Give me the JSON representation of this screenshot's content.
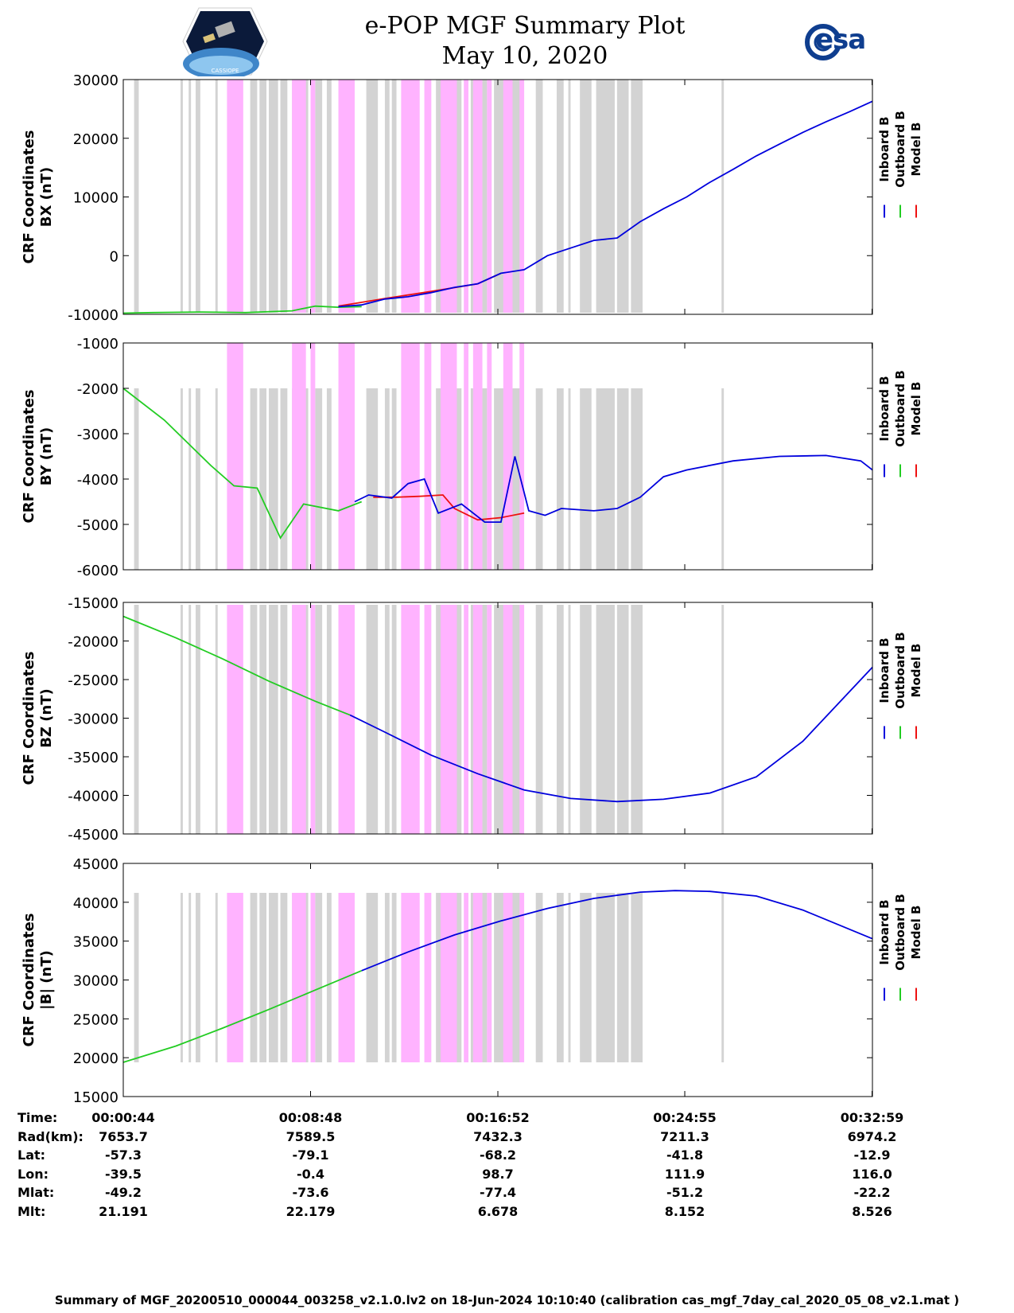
{
  "header": {
    "title_line1": "e-POP MGF Summary Plot",
    "title_line2": "May 10, 2020",
    "logo_left": "cassiope-satellite-logo",
    "logo_left_caption": "CASSIOPE",
    "logo_right": "esa-logo",
    "logo_right_text": "esa"
  },
  "colors": {
    "inboard": "#0000dd",
    "outboard": "#22cc22",
    "model": "#ee1111",
    "gray_band": "#d3d3d3",
    "magenta_band": "#ffb3ff"
  },
  "legend": {
    "inboard": "Inboard B",
    "outboard": "Outboard B",
    "model": "Model B"
  },
  "chart_data": [
    {
      "type": "line",
      "ylabel_line1": "CRF Coordinates",
      "ylabel_line2": "BX (nT)",
      "ylim": [
        -10000,
        30000
      ],
      "yticks": [
        "30000",
        "20000",
        "10000",
        "0",
        "-10000"
      ],
      "xlim_min": [
        0.73,
        33.0
      ],
      "series": [
        {
          "name": "Outboard B",
          "x": [
            0.73,
            2,
            4,
            6,
            8,
            9,
            10,
            11
          ],
          "y": [
            -9800,
            -9700,
            -9600,
            -9700,
            -9400,
            -8600,
            -8800,
            -8700
          ]
        },
        {
          "name": "Model B",
          "x": [
            10,
            12,
            14,
            16,
            17
          ],
          "y": [
            -8600,
            -7300,
            -6100,
            -4800,
            -3000
          ]
        },
        {
          "name": "Inboard B",
          "x": [
            10,
            11,
            12,
            13,
            14,
            15,
            16,
            17,
            18,
            19,
            20,
            21,
            22,
            23,
            24,
            25,
            26,
            27,
            28,
            29,
            30,
            31,
            32,
            33
          ],
          "y": [
            -8700,
            -8400,
            -7400,
            -7000,
            -6300,
            -5400,
            -4800,
            -3000,
            -2400,
            0,
            1300,
            2600,
            3000,
            5800,
            8000,
            10000,
            12500,
            14700,
            17000,
            19000,
            21000,
            22800,
            24500,
            26300
          ]
        }
      ]
    },
    {
      "type": "line",
      "ylabel_line1": "CRF Coordinates",
      "ylabel_line2": "BY (nT)",
      "ylim": [
        -6000,
        -1000
      ],
      "yticks": [
        "-1000",
        "-2000",
        "-3000",
        "-4000",
        "-5000",
        "-6000"
      ],
      "series": [
        {
          "name": "Outboard B",
          "x": [
            0.73,
            2.5,
            4.5,
            5.5,
            6.5,
            7.5,
            8.5,
            10,
            11
          ],
          "y": [
            -2000,
            -2700,
            -3700,
            -4150,
            -4200,
            -5300,
            -4550,
            -4700,
            -4500
          ]
        },
        {
          "name": "Model B",
          "x": [
            11.5,
            12.5,
            13.5,
            14.5,
            15,
            16,
            17,
            18
          ],
          "y": [
            -4400,
            -4400,
            -4380,
            -4350,
            -4650,
            -4900,
            -4850,
            -4750
          ]
        },
        {
          "name": "Inboard B",
          "x": [
            10.7,
            11.3,
            12.3,
            13,
            13.7,
            14.3,
            15.3,
            16.3,
            17,
            17.6,
            18.2,
            18.9,
            19.6,
            21,
            22,
            23,
            24,
            25,
            27,
            29,
            31,
            32.5,
            33
          ],
          "y": [
            -4500,
            -4350,
            -4420,
            -4100,
            -4000,
            -4750,
            -4550,
            -4950,
            -4950,
            -3500,
            -4700,
            -4800,
            -4650,
            -4700,
            -4650,
            -4400,
            -3950,
            -3800,
            -3600,
            -3500,
            -3480,
            -3600,
            -3800
          ]
        }
      ]
    },
    {
      "type": "line",
      "ylabel_line1": "CRF Coordinates",
      "ylabel_line2": "BZ (nT)",
      "ylim": [
        -45000,
        -15000
      ],
      "yticks": [
        "-15000",
        "-20000",
        "-25000",
        "-30000",
        "-35000",
        "-40000",
        "-45000"
      ],
      "series": [
        {
          "name": "Outboard B",
          "x": [
            0.73,
            3,
            5,
            7,
            9,
            10.5
          ],
          "y": [
            -16800,
            -19600,
            -22300,
            -25200,
            -27800,
            -29600
          ]
        },
        {
          "name": "Inboard B",
          "x": [
            10.5,
            12,
            14,
            16,
            18,
            20,
            22,
            24,
            26,
            28,
            30,
            33
          ],
          "y": [
            -29600,
            -31800,
            -34800,
            -37200,
            -39300,
            -40400,
            -40800,
            -40500,
            -39700,
            -37600,
            -33000,
            -23400
          ]
        }
      ]
    },
    {
      "type": "line",
      "ylabel_line1": "CRF Coordinates",
      "ylabel_line2": "|B| (nT)",
      "ylim": [
        15000,
        45000
      ],
      "yticks": [
        "45000",
        "40000",
        "35000",
        "30000",
        "25000",
        "20000",
        "15000"
      ],
      "series": [
        {
          "name": "Outboard B",
          "x": [
            0.73,
            3,
            5,
            7,
            9,
            11
          ],
          "y": [
            19400,
            21500,
            23800,
            26200,
            28700,
            31200
          ]
        },
        {
          "name": "Inboard B",
          "x": [
            11,
            13,
            15,
            17,
            19,
            21,
            23,
            24.5,
            26,
            28,
            30,
            33
          ],
          "y": [
            31200,
            33600,
            35800,
            37600,
            39200,
            40500,
            41300,
            41500,
            41400,
            40800,
            39000,
            35300
          ]
        }
      ]
    }
  ],
  "bands": {
    "gray": [
      [
        1.2,
        1.4
      ],
      [
        3.2,
        3.3
      ],
      [
        3.55,
        3.65
      ],
      [
        3.85,
        4.05
      ],
      [
        4.7,
        4.8
      ],
      [
        6.2,
        6.5
      ],
      [
        6.6,
        6.9
      ],
      [
        7.0,
        7.4
      ],
      [
        7.5,
        7.8
      ],
      [
        8.0,
        8.2
      ],
      [
        8.4,
        8.7
      ],
      [
        9.0,
        9.3
      ],
      [
        9.5,
        9.7
      ],
      [
        10.0,
        10.4
      ],
      [
        11.2,
        11.7
      ],
      [
        12.0,
        12.2
      ],
      [
        12.3,
        12.5
      ],
      [
        14.2,
        14.5
      ],
      [
        15.0,
        15.3
      ],
      [
        15.7,
        15.9
      ],
      [
        16.2,
        16.4
      ],
      [
        16.7,
        17.2
      ],
      [
        17.5,
        17.9
      ],
      [
        18.5,
        18.8
      ],
      [
        19.4,
        19.7
      ],
      [
        19.9,
        20.0
      ],
      [
        20.4,
        20.9
      ],
      [
        21.1,
        21.9
      ],
      [
        22.0,
        22.5
      ],
      [
        22.6,
        23.1
      ],
      [
        26.5,
        26.6
      ]
    ],
    "magenta": [
      [
        5.2,
        5.9
      ],
      [
        8.0,
        8.6
      ],
      [
        8.8,
        9.0
      ],
      [
        10.0,
        10.7
      ],
      [
        12.7,
        13.5
      ],
      [
        13.7,
        14.0
      ],
      [
        14.4,
        15.1
      ],
      [
        15.4,
        15.6
      ],
      [
        15.8,
        16.2
      ],
      [
        16.4,
        16.6
      ],
      [
        17.1,
        17.5
      ],
      [
        17.8,
        18.0
      ]
    ]
  },
  "xaxis": {
    "ticks_min": [
      0.733,
      8.8,
      16.867,
      24.917,
      32.983
    ],
    "tick_labels": [
      "00:00:44",
      "00:08:48",
      "00:16:52",
      "00:24:55",
      "00:32:59"
    ]
  },
  "table": {
    "rows": [
      {
        "label": "Time:",
        "values": [
          "00:00:44",
          "00:08:48",
          "00:16:52",
          "00:24:55",
          "00:32:59"
        ]
      },
      {
        "label": "Rad(km):",
        "values": [
          "7653.7",
          "7589.5",
          "7432.3",
          "7211.3",
          "6974.2"
        ]
      },
      {
        "label": "Lat:",
        "values": [
          "-57.3",
          "-79.1",
          "-68.2",
          "-41.8",
          "-12.9"
        ]
      },
      {
        "label": "Lon:",
        "values": [
          "-39.5",
          "-0.4",
          "98.7",
          "111.9",
          "116.0"
        ]
      },
      {
        "label": "Mlat:",
        "values": [
          "-49.2",
          "-73.6",
          "-77.4",
          "-51.2",
          "-22.2"
        ]
      },
      {
        "label": "Mlt:",
        "values": [
          "21.191",
          "22.179",
          "6.678",
          "8.152",
          "8.526"
        ]
      }
    ]
  },
  "footer": "Summary of MGF_20200510_000044_003258_v2.1.0.lv2 on 18-Jun-2024 10:10:40 (calibration cas_mgf_7day_cal_2020_05_08_v2.1.mat )"
}
